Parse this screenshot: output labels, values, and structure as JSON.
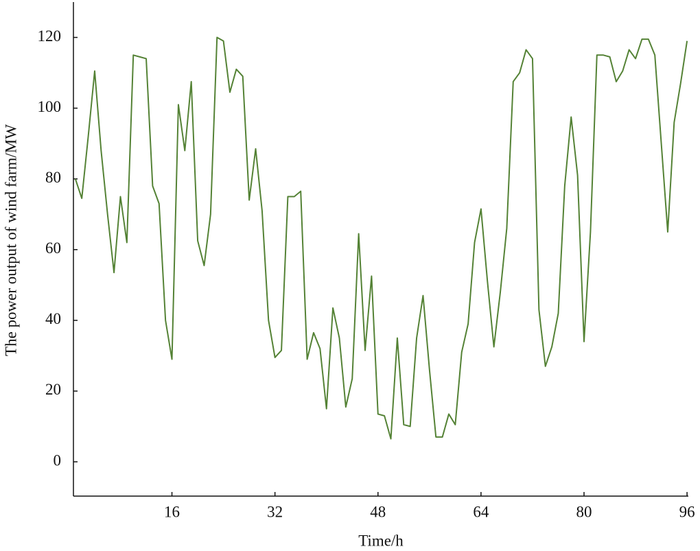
{
  "chart_data": {
    "type": "line",
    "xlabel": "Time/h",
    "ylabel": "The power output of wind farm/MW",
    "x": [
      1,
      2,
      3,
      4,
      5,
      6,
      7,
      8,
      9,
      10,
      11,
      12,
      13,
      14,
      15,
      16,
      17,
      18,
      19,
      20,
      21,
      22,
      23,
      24,
      25,
      26,
      27,
      28,
      29,
      30,
      31,
      32,
      33,
      34,
      35,
      36,
      37,
      38,
      39,
      40,
      41,
      42,
      43,
      44,
      45,
      46,
      47,
      48,
      49,
      50,
      51,
      52,
      53,
      54,
      55,
      56,
      57,
      58,
      59,
      60,
      61,
      62,
      63,
      64,
      65,
      66,
      67,
      68,
      69,
      70,
      71,
      72,
      73,
      74,
      75,
      76,
      77,
      78,
      79,
      80,
      81,
      82,
      83,
      84,
      85,
      86,
      87,
      88,
      89,
      90,
      91,
      92,
      93,
      94,
      95,
      96
    ],
    "values": [
      80,
      74.5,
      92,
      110.5,
      88,
      70,
      53.5,
      75,
      62,
      115,
      114.5,
      114,
      78,
      73,
      40,
      29,
      101,
      88,
      107.5,
      62.5,
      55.5,
      70,
      120,
      119,
      104.5,
      111,
      109,
      74,
      88.5,
      71,
      40,
      29.5,
      31.5,
      75,
      75,
      76.5,
      29,
      36.5,
      32,
      15,
      43.5,
      35,
      15.5,
      23.5,
      64.5,
      31.5,
      52.5,
      13.5,
      13,
      6.5,
      35,
      10.5,
      10,
      35,
      47,
      26,
      7,
      7,
      13.5,
      10.5,
      31,
      39,
      62,
      71.5,
      51,
      32.5,
      48,
      66,
      107.5,
      110,
      116.5,
      114,
      43,
      27,
      32.5,
      42,
      78,
      97.5,
      81,
      34,
      65,
      115,
      115,
      114.5,
      107.5,
      110.5,
      116.5,
      114,
      119.5,
      119.5,
      115,
      90,
      65,
      96,
      107,
      119
    ],
    "color": "#548235",
    "xlim": [
      0.7,
      96.2
    ],
    "xticks": [
      16,
      32,
      48,
      64,
      80,
      96
    ],
    "ylim": [
      -9.7,
      130
    ],
    "yticks": [
      0,
      20,
      40,
      60,
      80,
      100,
      120
    ],
    "grid": false
  }
}
